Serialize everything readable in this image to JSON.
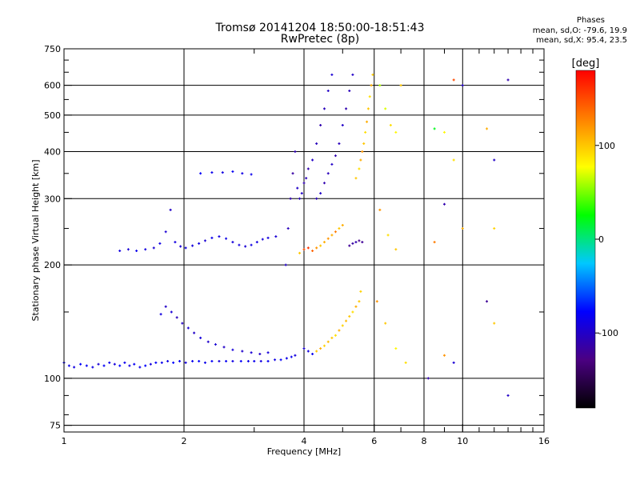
{
  "header": {
    "title": "Tromsø 20141204 18:50:00-18:51:43",
    "subtitle": "RwPretec (8p)",
    "phase_title": "Phases",
    "phase_o": "mean, sd,O: -79.6, 19.9",
    "phase_x": "mean, sd,X:  95.4, 23.5"
  },
  "chart_data": {
    "type": "scatter",
    "xlabel": "Frequency [MHz]",
    "ylabel": "Stationary phase Virtual Height [km]",
    "xscale": "log",
    "yscale": "log",
    "xlim": [
      1,
      16
    ],
    "ylim": [
      72,
      750
    ],
    "xticks": [
      1,
      2,
      4,
      6,
      8,
      10,
      16
    ],
    "yticks": [
      75,
      100,
      200,
      300,
      400,
      500,
      600,
      750
    ],
    "x_minor_ticks": [
      3,
      5,
      7,
      9,
      11,
      12,
      13,
      14,
      15
    ],
    "y_minor_ticks": [
      80,
      90,
      150,
      250,
      350,
      450,
      550,
      650,
      700
    ],
    "grid": true,
    "colorbar": {
      "label": "[deg]",
      "range": [
        -180,
        180
      ],
      "ticks": [
        100,
        0,
        -100
      ],
      "colormap": [
        "#000000",
        "#4b0082",
        "#0000ff",
        "#00c8ff",
        "#00ff00",
        "#ffff00",
        "#ff8000",
        "#ff0000"
      ]
    },
    "point_color_scale": "phase (deg)",
    "series": [
      {
        "values": [
          [
            1.0,
            110,
            -80
          ],
          [
            1.03,
            108,
            -85
          ],
          [
            1.06,
            107,
            -90
          ],
          [
            1.1,
            109,
            -78
          ],
          [
            1.14,
            108,
            -82
          ],
          [
            1.18,
            107,
            -88
          ],
          [
            1.22,
            109,
            -95
          ],
          [
            1.26,
            108,
            -80
          ],
          [
            1.3,
            110,
            -85
          ],
          [
            1.34,
            109,
            -92
          ],
          [
            1.38,
            108,
            -76
          ],
          [
            1.42,
            110,
            -84
          ],
          [
            1.46,
            108,
            -90
          ],
          [
            1.5,
            109,
            -82
          ],
          [
            1.55,
            107,
            -86
          ],
          [
            1.6,
            108,
            -78
          ],
          [
            1.65,
            109,
            -92
          ],
          [
            1.7,
            110,
            -80
          ],
          [
            1.76,
            110,
            -85
          ],
          [
            1.82,
            111,
            -88
          ],
          [
            1.88,
            110,
            -76
          ],
          [
            1.95,
            111,
            -82
          ],
          [
            2.02,
            110,
            -90
          ],
          [
            2.1,
            111,
            -84
          ],
          [
            2.18,
            111,
            -78
          ],
          [
            2.26,
            110,
            -86
          ],
          [
            2.35,
            111,
            -80
          ],
          [
            2.45,
            111,
            -92
          ],
          [
            2.55,
            111,
            -82
          ],
          [
            2.65,
            111,
            -88
          ],
          [
            2.78,
            111,
            -80
          ],
          [
            2.9,
            111,
            -86
          ],
          [
            3.0,
            111,
            -84
          ],
          [
            3.12,
            111,
            -90
          ],
          [
            3.25,
            111,
            -82
          ],
          [
            3.38,
            112,
            -88
          ],
          [
            3.5,
            112,
            -80
          ],
          [
            3.62,
            113,
            -86
          ],
          [
            3.72,
            114,
            -84
          ],
          [
            3.8,
            115,
            -92
          ]
        ]
      },
      {
        "values": [
          [
            1.75,
            148,
            -90
          ],
          [
            1.8,
            155,
            -100
          ],
          [
            1.86,
            150,
            -95
          ],
          [
            1.92,
            145,
            -105
          ],
          [
            1.98,
            140,
            -100
          ],
          [
            2.05,
            136,
            -95
          ],
          [
            2.12,
            132,
            -100
          ],
          [
            2.2,
            128,
            -92
          ],
          [
            2.3,
            125,
            -98
          ],
          [
            2.4,
            123,
            -95
          ],
          [
            2.52,
            121,
            -100
          ],
          [
            2.65,
            119,
            -92
          ],
          [
            2.8,
            118,
            -98
          ],
          [
            2.95,
            117,
            -95
          ],
          [
            3.1,
            116,
            -100
          ],
          [
            3.25,
            117,
            -92
          ]
        ]
      },
      {
        "values": [
          [
            1.38,
            218,
            -90
          ],
          [
            1.45,
            220,
            -95
          ],
          [
            1.52,
            218,
            -85
          ],
          [
            1.6,
            220,
            -90
          ],
          [
            1.68,
            222,
            -95
          ],
          [
            1.74,
            228,
            -88
          ],
          [
            1.8,
            245,
            -95
          ],
          [
            1.85,
            280,
            -100
          ],
          [
            1.9,
            230,
            -90
          ],
          [
            1.96,
            224,
            -95
          ],
          [
            2.02,
            222,
            -88
          ],
          [
            2.1,
            225,
            -92
          ],
          [
            2.18,
            228,
            -90
          ],
          [
            2.26,
            232,
            -95
          ],
          [
            2.35,
            236,
            -85
          ],
          [
            2.45,
            238,
            -90
          ],
          [
            2.55,
            235,
            -88
          ],
          [
            2.65,
            230,
            -92
          ],
          [
            2.75,
            226,
            -90
          ],
          [
            2.85,
            224,
            -95
          ],
          [
            2.95,
            226,
            -88
          ],
          [
            3.05,
            230,
            -90
          ],
          [
            3.15,
            234,
            -92
          ],
          [
            3.25,
            236,
            -90
          ],
          [
            3.4,
            238,
            -95
          ]
        ]
      },
      {
        "values": [
          [
            2.2,
            350,
            -80
          ],
          [
            2.35,
            352,
            -85
          ],
          [
            2.5,
            352,
            -90
          ],
          [
            2.65,
            354,
            -82
          ],
          [
            2.8,
            350,
            -88
          ],
          [
            2.95,
            348,
            -85
          ]
        ]
      },
      {
        "values": [
          [
            3.6,
            200,
            -100
          ],
          [
            3.65,
            250,
            -105
          ],
          [
            3.7,
            300,
            -110
          ],
          [
            3.75,
            350,
            -115
          ],
          [
            3.8,
            400,
            -110
          ],
          [
            3.85,
            320,
            -100
          ],
          [
            3.9,
            300,
            -105
          ],
          [
            3.95,
            310,
            -100
          ],
          [
            4.0,
            330,
            -110
          ],
          [
            4.05,
            340,
            -105
          ],
          [
            4.1,
            360,
            -110
          ],
          [
            4.2,
            380,
            -100
          ],
          [
            4.3,
            420,
            -105
          ],
          [
            4.4,
            470,
            -110
          ],
          [
            4.5,
            520,
            -105
          ],
          [
            4.6,
            580,
            -100
          ],
          [
            4.7,
            640,
            -95
          ]
        ]
      },
      {
        "values": [
          [
            4.3,
            300,
            -105
          ],
          [
            4.4,
            310,
            -100
          ],
          [
            4.5,
            330,
            -110
          ],
          [
            4.6,
            350,
            -105
          ],
          [
            4.7,
            370,
            -100
          ],
          [
            4.8,
            390,
            -110
          ],
          [
            4.9,
            420,
            -105
          ],
          [
            5.0,
            470,
            -100
          ],
          [
            5.1,
            520,
            -110
          ],
          [
            5.2,
            580,
            -105
          ],
          [
            5.3,
            640,
            -100
          ]
        ]
      },
      {
        "values": [
          [
            5.4,
            340,
            100
          ],
          [
            5.5,
            360,
            90
          ],
          [
            5.55,
            380,
            110
          ],
          [
            5.6,
            400,
            120
          ],
          [
            5.65,
            420,
            100
          ],
          [
            5.7,
            450,
            90
          ],
          [
            5.75,
            480,
            110
          ],
          [
            5.8,
            520,
            100
          ],
          [
            5.85,
            560,
            90
          ],
          [
            5.9,
            600,
            110
          ],
          [
            5.95,
            640,
            100
          ]
        ]
      },
      {
        "values": [
          [
            4.0,
            120,
            -95
          ],
          [
            4.1,
            118,
            -90
          ],
          [
            4.2,
            116,
            -85
          ],
          [
            4.3,
            118,
            100
          ],
          [
            4.4,
            120,
            110
          ],
          [
            4.5,
            122,
            95
          ],
          [
            4.6,
            125,
            105
          ],
          [
            4.7,
            128,
            100
          ],
          [
            4.8,
            130,
            90
          ],
          [
            4.9,
            134,
            110
          ],
          [
            5.0,
            138,
            95
          ],
          [
            5.1,
            142,
            105
          ],
          [
            5.2,
            146,
            100
          ],
          [
            5.3,
            150,
            90
          ],
          [
            5.4,
            155,
            110
          ],
          [
            5.5,
            160,
            100
          ],
          [
            5.55,
            170,
            95
          ]
        ]
      },
      {
        "values": [
          [
            3.9,
            215,
            100
          ],
          [
            4.0,
            220,
            150
          ],
          [
            4.1,
            222,
            160
          ],
          [
            4.2,
            218,
            140
          ],
          [
            4.3,
            222,
            120
          ],
          [
            4.4,
            225,
            100
          ],
          [
            4.5,
            230,
            110
          ],
          [
            4.6,
            235,
            120
          ],
          [
            4.7,
            240,
            110
          ],
          [
            4.8,
            245,
            130
          ],
          [
            4.9,
            250,
            100
          ],
          [
            5.0,
            255,
            110
          ]
        ]
      },
      {
        "values": [
          [
            5.2,
            225,
            -120
          ],
          [
            5.3,
            228,
            -115
          ],
          [
            5.4,
            230,
            -110
          ],
          [
            5.5,
            232,
            -125
          ],
          [
            5.6,
            230,
            -120
          ]
        ]
      },
      {
        "values": [
          [
            6.2,
            600,
            60
          ],
          [
            6.4,
            520,
            70
          ],
          [
            6.6,
            470,
            90
          ],
          [
            6.8,
            450,
            80
          ],
          [
            7.0,
            600,
            100
          ],
          [
            8.5,
            460,
            20
          ],
          [
            9.0,
            450,
            80
          ],
          [
            9.5,
            620,
            150
          ],
          [
            10.0,
            600,
            -100
          ],
          [
            11.5,
            460,
            110
          ],
          [
            12.0,
            380,
            -100
          ],
          [
            13.0,
            620,
            -110
          ],
          [
            6.2,
            280,
            120
          ],
          [
            6.5,
            240,
            90
          ],
          [
            6.8,
            220,
            100
          ],
          [
            8.5,
            230,
            130
          ],
          [
            9.0,
            290,
            -110
          ],
          [
            9.5,
            380,
            90
          ],
          [
            10.0,
            250,
            110
          ],
          [
            12.0,
            250,
            95
          ],
          [
            6.1,
            160,
            120
          ],
          [
            6.4,
            140,
            100
          ],
          [
            6.8,
            120,
            80
          ],
          [
            7.2,
            110,
            90
          ],
          [
            8.2,
            100,
            -110
          ],
          [
            9.0,
            115,
            120
          ],
          [
            9.5,
            110,
            -95
          ],
          [
            11.5,
            160,
            -120
          ],
          [
            12.0,
            140,
            100
          ],
          [
            13.0,
            90,
            -100
          ]
        ]
      }
    ]
  }
}
